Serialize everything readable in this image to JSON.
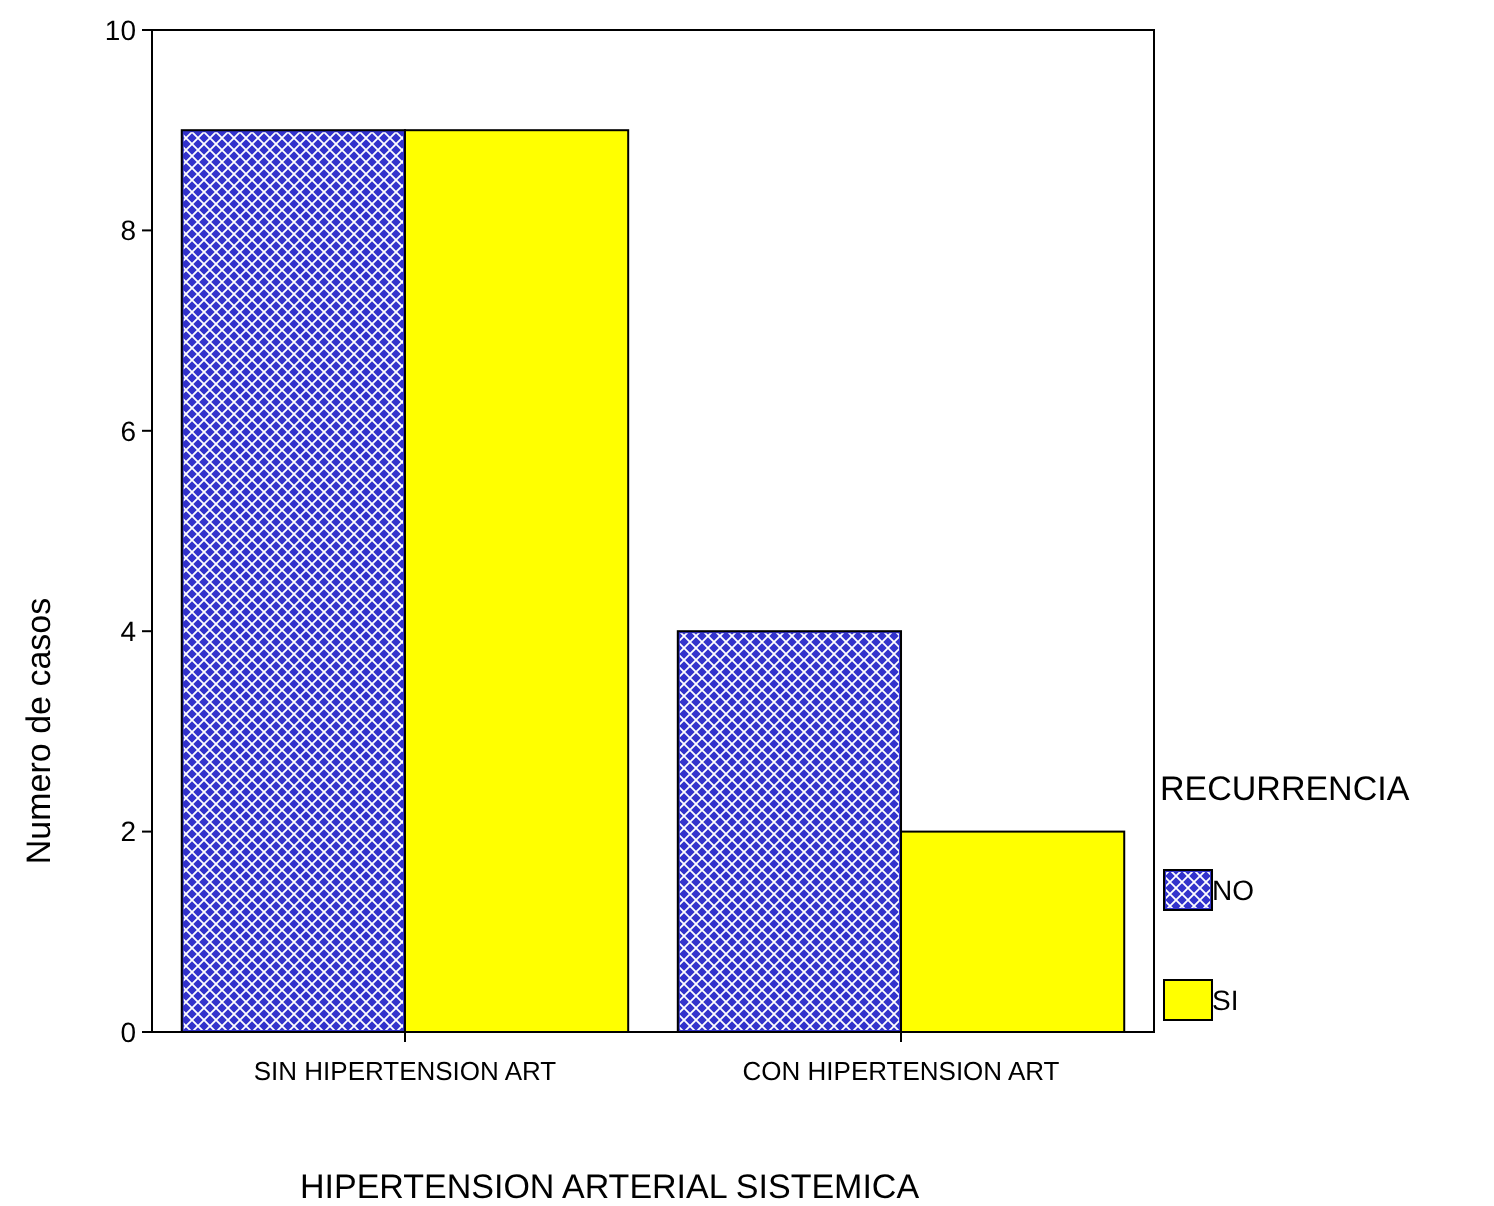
{
  "chart_data": {
    "type": "bar",
    "xlabel": "HIPERTENSION ARTERIAL SISTEMICA",
    "ylabel": "Numero de casos",
    "legend_title": "RECURRENCIA",
    "categories": [
      "SIN HIPERTENSION ART",
      "CON HIPERTENSION ART"
    ],
    "series": [
      {
        "name": "NO",
        "color": "#3333cc",
        "values": [
          9,
          4
        ]
      },
      {
        "name": "SI",
        "color": "#ffff00",
        "values": [
          9,
          2
        ]
      }
    ],
    "ylim": [
      0,
      10
    ],
    "yticks": [
      0,
      2,
      4,
      6,
      8,
      10
    ],
    "grid": false,
    "legend": "right"
  }
}
